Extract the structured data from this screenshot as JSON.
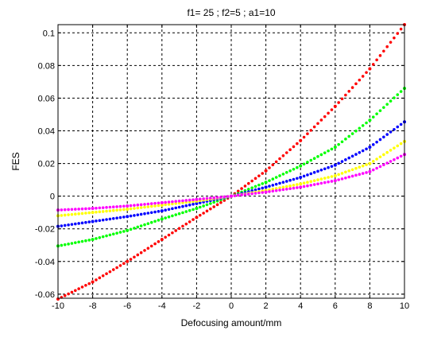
{
  "chart_data": {
    "type": "scatter",
    "title": "f1= 25 ; f2=5 ;  a1=10",
    "xlabel": "Defocusing amount/mm",
    "ylabel": "FES",
    "xlim": [
      -10,
      10
    ],
    "ylim": [
      -0.0625,
      0.105
    ],
    "grid": true,
    "grid_style": "dashed",
    "x_ticks": [
      -10,
      -8,
      -6,
      -4,
      -2,
      0,
      2,
      4,
      6,
      8,
      10
    ],
    "x_tick_labels": [
      "-10",
      "-8",
      "-6",
      "-4",
      "-2",
      "0",
      "2",
      "4",
      "6",
      "8",
      "10"
    ],
    "y_ticks": [
      -0.06,
      -0.04,
      -0.02,
      0,
      0.02,
      0.04,
      0.06,
      0.08,
      0.1
    ],
    "y_tick_labels": [
      "-0.06",
      "-0.04",
      "-0.02",
      "0",
      "0.02",
      "0.04",
      "0.06",
      "0.08",
      "0.1"
    ],
    "x": [
      -10,
      -8,
      -6,
      -4,
      -2,
      0,
      2,
      4,
      6,
      8,
      10
    ],
    "series": [
      {
        "color": "#ff0000",
        "marker": "dot",
        "values": [
          -0.063,
          -0.0525,
          -0.04,
          -0.0265,
          -0.013,
          0,
          0.0155,
          0.034,
          0.055,
          0.078,
          0.105
        ]
      },
      {
        "color": "#00ff00",
        "marker": "dot",
        "values": [
          -0.0305,
          -0.0265,
          -0.021,
          -0.014,
          -0.0075,
          0,
          0.0085,
          0.0185,
          0.03,
          0.0465,
          0.066
        ]
      },
      {
        "color": "#0000ff",
        "marker": "dot",
        "values": [
          -0.0185,
          -0.0155,
          -0.0125,
          -0.009,
          -0.0045,
          0,
          0.0055,
          0.0115,
          0.019,
          0.03,
          0.0455
        ]
      },
      {
        "color": "#ffff00",
        "marker": "dot",
        "values": [
          -0.012,
          -0.01,
          -0.008,
          -0.0055,
          -0.003,
          0,
          0.0035,
          0.0075,
          0.0125,
          0.02,
          0.0335
        ]
      },
      {
        "color": "#ff00ff",
        "marker": "dot",
        "values": [
          -0.0085,
          -0.0075,
          -0.006,
          -0.004,
          -0.002,
          0,
          0.0025,
          0.0055,
          0.0095,
          0.015,
          0.0255
        ]
      }
    ]
  }
}
